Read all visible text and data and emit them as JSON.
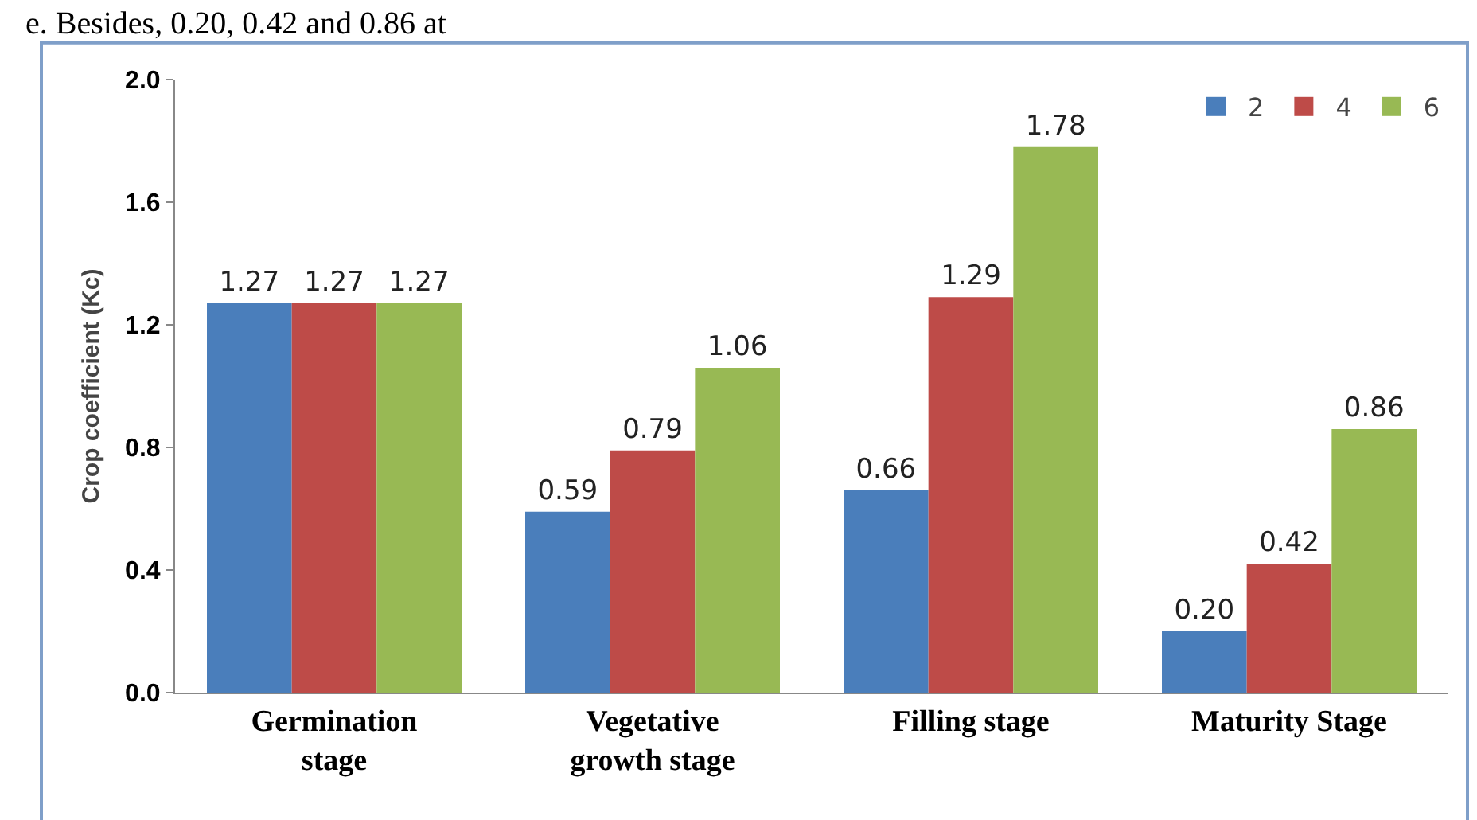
{
  "chart_data": {
    "type": "bar",
    "ylabel": "Crop coefficient (Kc)",
    "annotations": [
      "e. Besides, 0.20, 0.42 and 0.86 at"
    ],
    "categories": [
      "Germination\nstage",
      "Vegetative\ngrowth stage",
      "Filling stage",
      "Maturity Stage"
    ],
    "series": [
      {
        "name": "2",
        "color": "#4a7ebb",
        "values": [
          1.27,
          0.59,
          0.66,
          0.2
        ],
        "value_labels": [
          "1.27",
          "0.59",
          "0.66",
          "0.20"
        ]
      },
      {
        "name": "4",
        "color": "#be4b48",
        "values": [
          1.27,
          0.79,
          1.29,
          0.42
        ],
        "value_labels": [
          "1.27",
          "0.79",
          "1.29",
          "0.42"
        ]
      },
      {
        "name": "6",
        "color": "#98b954",
        "values": [
          1.27,
          1.06,
          1.78,
          0.86
        ],
        "value_labels": [
          "1.27",
          "1.06",
          "1.78",
          "0.86"
        ]
      }
    ],
    "ylim": [
      0,
      2
    ],
    "yticks": [
      {
        "value": 0,
        "label": "0.0"
      },
      0.4,
      0.8,
      1.2,
      1.6,
      {
        "value": 2,
        "label": "2.0"
      }
    ],
    "grid": false,
    "legend": "top right"
  }
}
